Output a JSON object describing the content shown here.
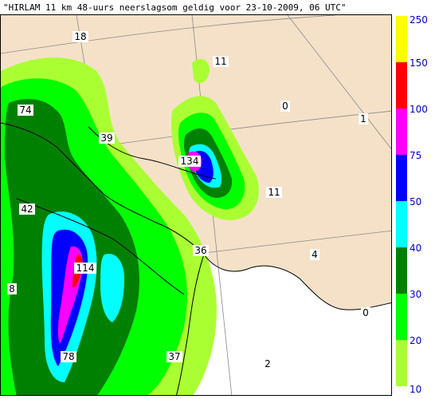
{
  "title": "\"HIRLAM 11 km 48-uurs neerslagsom geldig voor 23-10-2009, 06 UTC\"",
  "legend": {
    "ticks": [
      "250",
      "150",
      "100",
      "75",
      "50",
      "40",
      "30",
      "20",
      "10"
    ],
    "bands": [
      {
        "from": 150,
        "to": 250,
        "color": "#ffff00"
      },
      {
        "from": 100,
        "to": 150,
        "color": "#ff0000"
      },
      {
        "from": 75,
        "to": 100,
        "color": "#ff00ff"
      },
      {
        "from": 50,
        "to": 75,
        "color": "#0000ff"
      },
      {
        "from": 40,
        "to": 50,
        "color": "#00ffff"
      },
      {
        "from": 30,
        "to": 40,
        "color": "#008000"
      },
      {
        "from": 20,
        "to": 30,
        "color": "#00ff00"
      },
      {
        "from": 10,
        "to": 20,
        "color": "#aaff33"
      }
    ]
  },
  "colors": {
    "land": "#f5e1c8",
    "sea": "#ffffff",
    "band_10": "#aaff33",
    "band_20": "#00ff00",
    "band_30": "#008000",
    "band_40": "#00ffff",
    "band_50": "#0000ff",
    "band_75": "#ff00ff",
    "band_100": "#ff0000"
  },
  "map": {
    "values": [
      "18",
      "11",
      "0",
      "1",
      "74",
      "39",
      "134",
      "11",
      "42",
      "4",
      "36",
      "114",
      "8",
      "0",
      "78",
      "37",
      "2"
    ]
  }
}
